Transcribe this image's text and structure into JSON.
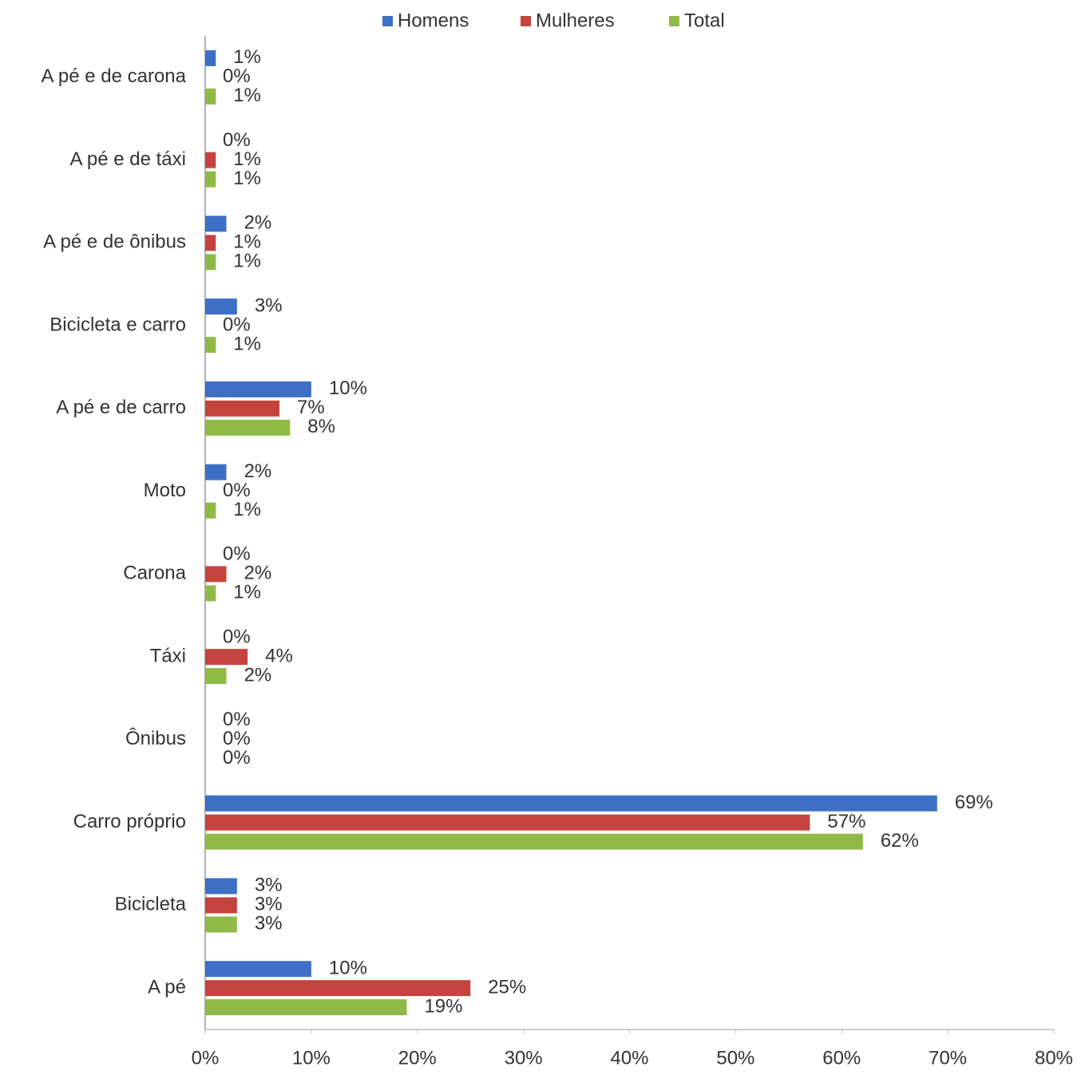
{
  "chart_data": {
    "type": "barh",
    "categories": [
      "A pé e de carona",
      "A pé e de táxi",
      "A pé e de ônibus",
      "Bicicleta e carro",
      "A pé e de carro",
      "Moto",
      "Carona",
      "Táxi",
      "Ônibus",
      "Carro próprio",
      "Bicicleta",
      "A pé"
    ],
    "series": [
      {
        "name": "Homens",
        "color": "#3d70c4",
        "values": [
          1,
          0,
          2,
          3,
          10,
          2,
          0,
          0,
          0,
          69,
          3,
          10
        ],
        "value_labels": [
          "1%",
          "0%",
          "2%",
          "3%",
          "10%",
          "2%",
          "0%",
          "0%",
          "0%",
          "69%",
          "3%",
          "10%"
        ]
      },
      {
        "name": "Mulheres",
        "color": "#c5433f",
        "values": [
          0,
          1,
          1,
          0,
          7,
          0,
          2,
          4,
          0,
          57,
          3,
          25
        ],
        "value_labels": [
          "0%",
          "1%",
          "1%",
          "0%",
          "7%",
          "0%",
          "2%",
          "4%",
          "0%",
          "57%",
          "3%",
          "25%"
        ]
      },
      {
        "name": "Total",
        "color": "#8fba48",
        "values": [
          1,
          1,
          1,
          1,
          8,
          1,
          1,
          2,
          0,
          62,
          3,
          19
        ],
        "value_labels": [
          "1%",
          "1%",
          "1%",
          "1%",
          "8%",
          "1%",
          "1%",
          "2%",
          "0%",
          "62%",
          "3%",
          "19%"
        ]
      }
    ],
    "xlim": [
      0,
      80
    ],
    "xticks": [
      {
        "value": 0,
        "label": "0%"
      },
      {
        "value": 10,
        "label": "10%"
      },
      {
        "value": 20,
        "label": "20%"
      },
      {
        "value": 30,
        "label": "30%"
      },
      {
        "value": 40,
        "label": "40%"
      },
      {
        "value": 50,
        "label": "50%"
      },
      {
        "value": 60,
        "label": "60%"
      },
      {
        "value": 70,
        "label": "70%"
      },
      {
        "value": 80,
        "label": "80%"
      }
    ],
    "legend": "top",
    "grid": false
  }
}
